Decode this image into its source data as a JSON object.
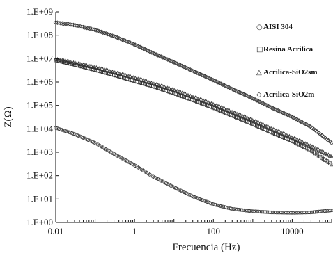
{
  "chart_data": {
    "type": "scatter",
    "xlabel": "Frecuencia (Hz)",
    "ylabel": "Z(Ω)",
    "x_scale": "log",
    "y_scale": "log",
    "xlim": [
      0.01,
      100000
    ],
    "ylim": [
      1,
      1000000000
    ],
    "x_ticks": [
      {
        "value": 0.01,
        "label": "0.01"
      },
      {
        "value": 1,
        "label": "1"
      },
      {
        "value": 100,
        "label": "100"
      },
      {
        "value": 10000,
        "label": "10000"
      }
    ],
    "y_ticks": [
      {
        "value": 1,
        "label": "1.E+00"
      },
      {
        "value": 10,
        "label": "1.E+01"
      },
      {
        "value": 100,
        "label": "1.E+02"
      },
      {
        "value": 1000,
        "label": "1.E+03"
      },
      {
        "value": 10000,
        "label": "1.E+04"
      },
      {
        "value": 100000,
        "label": "1.E+05"
      },
      {
        "value": 1000000,
        "label": "1.E+06"
      },
      {
        "value": 10000000,
        "label": "1.E+07"
      },
      {
        "value": 100000000,
        "label": "1.E+08"
      },
      {
        "value": 1000000000,
        "label": "1.E+09"
      }
    ],
    "grid": false,
    "legend_position": "right",
    "series": [
      {
        "name": "AISI 304",
        "marker": "circle",
        "x": [
          0.01,
          0.03,
          0.1,
          0.3,
          1,
          3,
          10,
          30,
          100,
          300,
          1000,
          3000,
          10000,
          30000,
          100000
        ],
        "y": [
          11000,
          6000,
          2500,
          850,
          280,
          90,
          32,
          13,
          6,
          3.8,
          3.0,
          2.7,
          2.6,
          2.7,
          3.3
        ]
      },
      {
        "name": "Resina Acrilica",
        "marker": "square",
        "x": [
          0.01,
          0.03,
          0.1,
          0.3,
          1,
          3,
          10,
          30,
          100,
          300,
          1000,
          3000,
          10000,
          30000,
          100000
        ],
        "y": [
          8500000,
          5500000,
          3300000,
          2000000,
          1100000,
          650000,
          330000,
          170000,
          80000,
          37000,
          16000,
          7000,
          3000,
          1200,
          300
        ]
      },
      {
        "name": "Acrilica-SiO2sm",
        "marker": "triangle",
        "x": [
          0.01,
          0.03,
          0.1,
          0.3,
          1,
          3,
          10,
          30,
          100,
          300,
          1000,
          3000,
          10000,
          30000,
          100000
        ],
        "y": [
          9500000,
          6500000,
          4200000,
          2600000,
          1500000,
          850000,
          450000,
          230000,
          110000,
          52000,
          23000,
          10000,
          4200,
          1800,
          650
        ]
      },
      {
        "name": "Acrilica-SiO2m",
        "marker": "diamond",
        "x": [
          0.01,
          0.03,
          0.1,
          0.3,
          1,
          3,
          10,
          30,
          100,
          300,
          1000,
          3000,
          10000,
          30000,
          100000
        ],
        "y": [
          350000000,
          270000000,
          170000000,
          90000000,
          40000000,
          17000000,
          7000000,
          3000000,
          1200000,
          500000,
          200000,
          80000,
          32000,
          12000,
          2500
        ]
      }
    ]
  }
}
